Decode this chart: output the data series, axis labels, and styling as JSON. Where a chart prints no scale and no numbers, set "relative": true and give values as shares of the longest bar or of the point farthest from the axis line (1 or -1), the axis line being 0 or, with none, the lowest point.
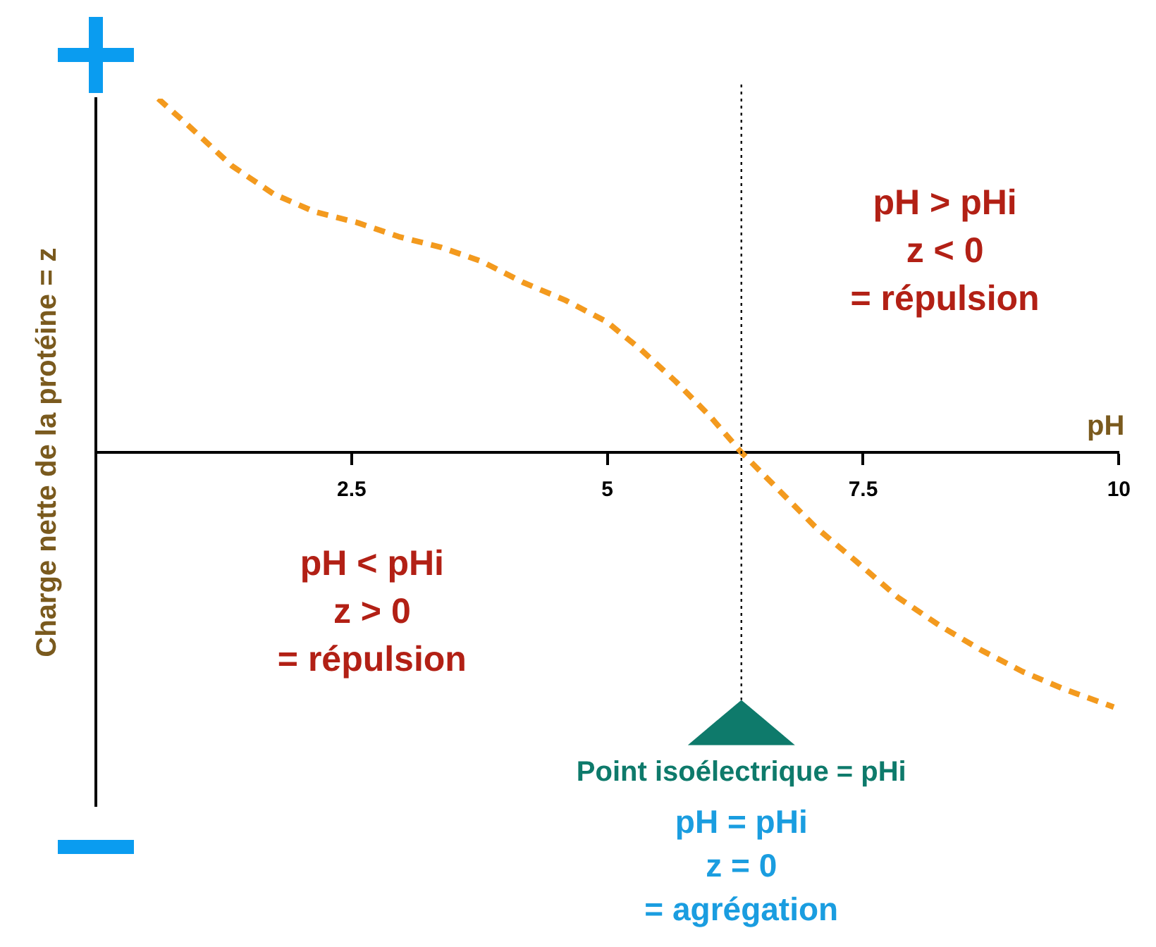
{
  "chart_data": {
    "type": "line",
    "relative": true,
    "xlabel": "pH",
    "ylabel": "Charge nette de la protéine = z",
    "x": [
      0.61,
      0.92,
      1.33,
      1.74,
      2.14,
      2.55,
      2.96,
      3.37,
      3.77,
      4.18,
      4.59,
      4.99,
      5.33,
      5.67,
      6.01,
      6.31,
      6.62,
      7.03,
      7.44,
      7.84,
      8.25,
      8.66,
      9.06,
      9.47,
      9.95
    ],
    "series": [
      {
        "color": "#f39a1e",
        "values": [
          1.0,
          0.92,
          0.81,
          0.73,
          0.68,
          0.65,
          0.61,
          0.58,
          0.54,
          0.48,
          0.43,
          0.37,
          0.29,
          0.2,
          0.1,
          0,
          -0.09,
          -0.21,
          -0.31,
          -0.41,
          -0.49,
          -0.56,
          -0.62,
          -0.67,
          -0.72
        ]
      }
    ],
    "xlim": [
      0,
      10
    ],
    "xticks": [
      {
        "value": 0,
        "label": null
      },
      2.5,
      5,
      7.5,
      10
    ],
    "line_style": "dashed",
    "marker": "none",
    "grid": false,
    "legend": false,
    "ref_lines": [
      {
        "axis": "x",
        "value": 6.31,
        "label": "Point isoélectrique = pHi",
        "line_style": "dotted"
      }
    ],
    "annotations": [
      "pH > pHi\nz < 0\n= répulsion",
      "pH < pHi\nz > 0\n= répulsion",
      "pH = pHi\nz = 0\n= agrégation"
    ]
  }
}
